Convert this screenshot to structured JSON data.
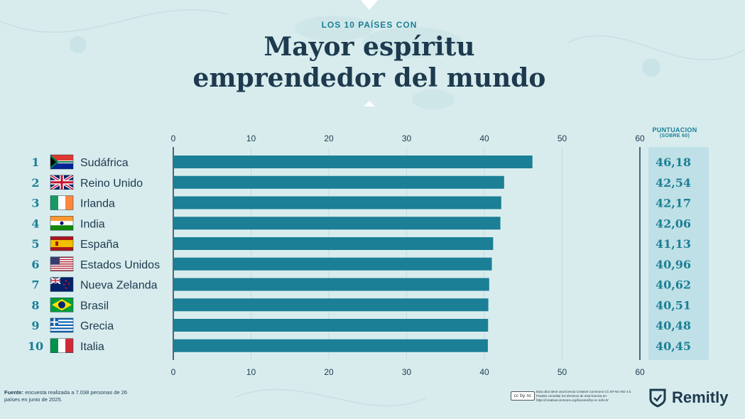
{
  "header": {
    "subtitle": "LOS 10 PAÍSES CON",
    "title_line1": "Mayor espíritu",
    "title_line2": "emprendedor del mundo"
  },
  "score_header": {
    "line1": "PUNTUACION",
    "line2": "(SOBRE 60)"
  },
  "colors": {
    "background": "#d8ecee",
    "bar": "#1b7f95",
    "score_panel": "#bfe0e6",
    "text_dark": "#1d3a4e",
    "rank": "#1b7f95"
  },
  "chart_data": {
    "type": "bar",
    "orientation": "horizontal",
    "categories": [
      "Sudáfrica",
      "Reino Unido",
      "Irlanda",
      "India",
      "España",
      "Estados Unidos",
      "Nueva Zelanda",
      "Brasil",
      "Grecia",
      "Italia"
    ],
    "ranks": [
      "1",
      "2",
      "3",
      "4",
      "5",
      "6",
      "7",
      "8",
      "9",
      "10"
    ],
    "values": [
      46.18,
      42.54,
      42.17,
      42.06,
      41.13,
      40.96,
      40.62,
      40.51,
      40.48,
      40.45
    ],
    "value_labels": [
      "46,18",
      "42,54",
      "42,17",
      "42,06",
      "41,13",
      "40,96",
      "40,62",
      "40,51",
      "40,48",
      "40,45"
    ],
    "flags": [
      "flag-south-africa",
      "flag-united-kingdom",
      "flag-ireland",
      "flag-india",
      "flag-spain",
      "flag-united-states",
      "flag-new-zealand",
      "flag-brazil",
      "flag-greece",
      "flag-italy"
    ],
    "xlim": [
      0,
      60
    ],
    "ticks": [
      0,
      10,
      20,
      30,
      40,
      50,
      60
    ],
    "tick_labels": [
      "0",
      "10",
      "20",
      "30",
      "40",
      "50",
      "60"
    ],
    "axis_position": "top and bottom",
    "grid": true
  },
  "footer": {
    "source_label": "Fuente:",
    "source_text": "encuesta realizada a 7.038 personas de 26 países en junio de 2025.",
    "cc_badge": "cc by nc",
    "license_text": "Esta obra tiene una licencia Creative Commons CC BY-NC-ND 4.0. Puedes consultar los términos de esta licencia en: https://creativecommons.org/licenses/by-nc-nd/4.0/",
    "brand": "Remitly"
  }
}
